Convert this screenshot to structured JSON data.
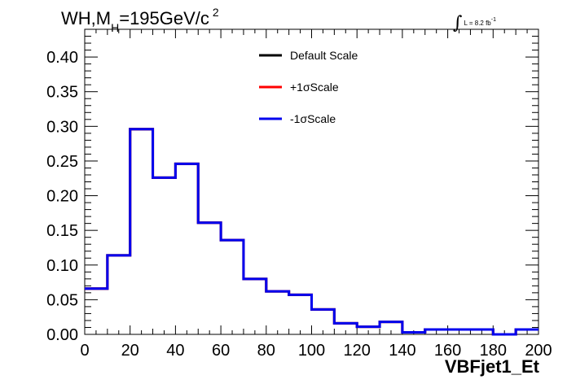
{
  "chart_data": {
    "type": "line",
    "title_parts": {
      "pre": "WH,M",
      "sub": "H",
      "mid": "=195GeV/c",
      "sup": "2"
    },
    "lumi": {
      "text": "L = 8.2 fb",
      "exp": "-1"
    },
    "xlabel": "VBFjet1_Et",
    "ylabel": "",
    "xlim": [
      0,
      200
    ],
    "ylim": [
      0,
      0.44
    ],
    "xticks": [
      "0",
      "20",
      "40",
      "60",
      "80",
      "100",
      "120",
      "140",
      "160",
      "180",
      "200"
    ],
    "yticks": [
      "0.00",
      "0.05",
      "0.10",
      "0.15",
      "0.20",
      "0.25",
      "0.30",
      "0.35",
      "0.40"
    ],
    "bin_edges": [
      0,
      10,
      20,
      30,
      40,
      50,
      60,
      70,
      80,
      90,
      100,
      110,
      120,
      130,
      140,
      150,
      160,
      170,
      180,
      190,
      200
    ],
    "series": [
      {
        "name": "Default Scale",
        "color": "#000000",
        "values": [
          0.066,
          0.114,
          0.296,
          0.226,
          0.246,
          0.161,
          0.136,
          0.08,
          0.062,
          0.057,
          0.036,
          0.016,
          0.011,
          0.018,
          0.003,
          0.007,
          0.007,
          0.007,
          0.0,
          0.007
        ]
      },
      {
        "name": "+1σScale",
        "color": "#ff0000",
        "values": [
          0.066,
          0.114,
          0.296,
          0.226,
          0.246,
          0.161,
          0.136,
          0.08,
          0.062,
          0.057,
          0.036,
          0.016,
          0.011,
          0.018,
          0.003,
          0.007,
          0.007,
          0.007,
          0.0,
          0.007
        ]
      },
      {
        "name": "-1σScale",
        "color": "#0000ee",
        "values": [
          0.066,
          0.114,
          0.296,
          0.226,
          0.246,
          0.161,
          0.136,
          0.08,
          0.062,
          0.057,
          0.036,
          0.016,
          0.011,
          0.018,
          0.003,
          0.007,
          0.007,
          0.007,
          0.0,
          0.007
        ]
      }
    ],
    "legend_position": "top-center"
  }
}
